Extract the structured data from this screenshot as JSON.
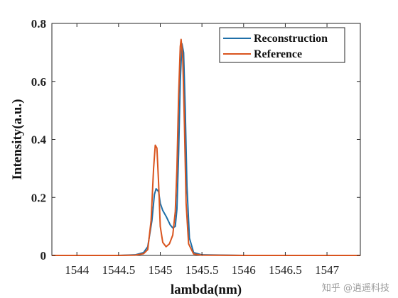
{
  "chart_data": {
    "type": "line",
    "xlabel": "lambda(nm)",
    "ylabel": "Intensity(a.u.)",
    "xlim": [
      1543.7,
      1547.4
    ],
    "ylim": [
      0,
      0.8
    ],
    "xticks": [
      "1544",
      "1544.5",
      "1545",
      "1545.5",
      "1546",
      "1546.5",
      "1547"
    ],
    "yticks": [
      "0",
      "0.2",
      "0.4",
      "0.6",
      "0.8"
    ],
    "grid": false,
    "legend_position": "top-right",
    "series": [
      {
        "name": "Reconstruction",
        "color": "#1f6fa8",
        "points": [
          [
            1543.7,
            0
          ],
          [
            1544.5,
            0
          ],
          [
            1544.7,
            0.002
          ],
          [
            1544.8,
            0.01
          ],
          [
            1544.85,
            0.03
          ],
          [
            1544.9,
            0.12
          ],
          [
            1544.93,
            0.21
          ],
          [
            1544.95,
            0.23
          ],
          [
            1544.98,
            0.22
          ],
          [
            1545.0,
            0.18
          ],
          [
            1545.03,
            0.155
          ],
          [
            1545.07,
            0.135
          ],
          [
            1545.12,
            0.105
          ],
          [
            1545.15,
            0.095
          ],
          [
            1545.18,
            0.1
          ],
          [
            1545.2,
            0.16
          ],
          [
            1545.22,
            0.35
          ],
          [
            1545.24,
            0.6
          ],
          [
            1545.26,
            0.73
          ],
          [
            1545.28,
            0.7
          ],
          [
            1545.3,
            0.5
          ],
          [
            1545.32,
            0.24
          ],
          [
            1545.35,
            0.06
          ],
          [
            1545.4,
            0.01
          ],
          [
            1545.5,
            0.002
          ],
          [
            1546.0,
            0
          ],
          [
            1547.4,
            0
          ]
        ]
      },
      {
        "name": "Reference",
        "color": "#d9541e",
        "points": [
          [
            1543.7,
            0
          ],
          [
            1544.5,
            0
          ],
          [
            1544.7,
            0.001
          ],
          [
            1544.8,
            0.006
          ],
          [
            1544.85,
            0.02
          ],
          [
            1544.89,
            0.12
          ],
          [
            1544.92,
            0.3
          ],
          [
            1544.94,
            0.38
          ],
          [
            1544.96,
            0.37
          ],
          [
            1544.98,
            0.25
          ],
          [
            1545.0,
            0.1
          ],
          [
            1545.03,
            0.045
          ],
          [
            1545.07,
            0.03
          ],
          [
            1545.11,
            0.04
          ],
          [
            1545.15,
            0.07
          ],
          [
            1545.18,
            0.15
          ],
          [
            1545.2,
            0.3
          ],
          [
            1545.22,
            0.55
          ],
          [
            1545.24,
            0.72
          ],
          [
            1545.25,
            0.745
          ],
          [
            1545.27,
            0.68
          ],
          [
            1545.29,
            0.45
          ],
          [
            1545.31,
            0.18
          ],
          [
            1545.34,
            0.04
          ],
          [
            1545.4,
            0.005
          ],
          [
            1545.5,
            0.001
          ],
          [
            1546.0,
            0
          ],
          [
            1547.4,
            0
          ]
        ]
      }
    ]
  },
  "watermark": "知乎 @逍遥科技"
}
